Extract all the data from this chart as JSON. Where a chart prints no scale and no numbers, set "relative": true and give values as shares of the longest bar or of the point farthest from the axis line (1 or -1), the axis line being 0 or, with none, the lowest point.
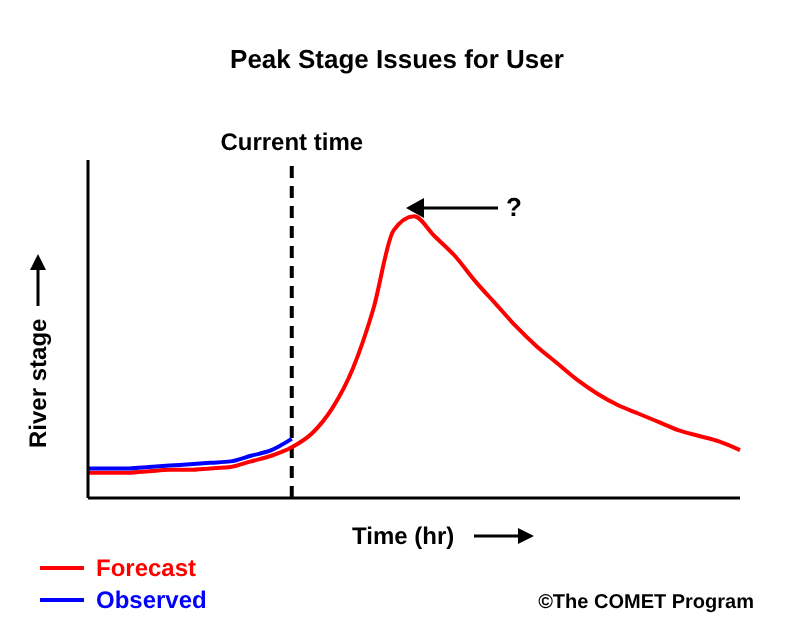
{
  "chart_data": {
    "type": "line",
    "title": "Peak Stage Issues for User",
    "xlabel": "Time (hr)",
    "ylabel": "River stage",
    "relative": true,
    "categories": [
      null,
      null,
      null,
      null,
      null,
      null,
      null,
      null,
      null,
      null,
      null,
      null,
      null,
      null,
      null,
      null,
      null,
      null,
      null,
      null,
      null,
      null,
      null,
      null,
      null,
      null,
      null,
      null,
      null,
      null,
      null,
      null,
      null
    ],
    "series": [
      {
        "name": "Forecast",
        "color": "#ff0000",
        "values": [
          0.09,
          0.09,
          0.09,
          0.095,
          0.1,
          0.1,
          0.105,
          0.11,
          0.13,
          0.15,
          0.18,
          0.23,
          0.32,
          0.46,
          0.67,
          0.95,
          1,
          0.93,
          0.86,
          0.77,
          0.69,
          0.61,
          0.54,
          0.48,
          0.42,
          0.37,
          0.33,
          0.3,
          0.27,
          0.24,
          0.22,
          0.2,
          0.17
        ]
      },
      {
        "name": "Observed",
        "color": "#0000ff",
        "values": [
          0.105,
          0.105,
          0.105,
          0.11,
          0.115,
          0.12,
          0.125,
          0.13,
          0.15,
          0.17,
          0.21,
          null,
          null,
          null,
          null,
          null,
          null,
          null,
          null,
          null,
          null,
          null,
          null,
          null,
          null,
          null,
          null,
          null,
          null,
          null,
          null,
          null,
          null
        ]
      }
    ],
    "annotations": [
      "Current time",
      "?",
      "©The COMET Program"
    ],
    "legend": "bottom left",
    "grid": false,
    "marker": "none",
    "line_style": "solid"
  }
}
